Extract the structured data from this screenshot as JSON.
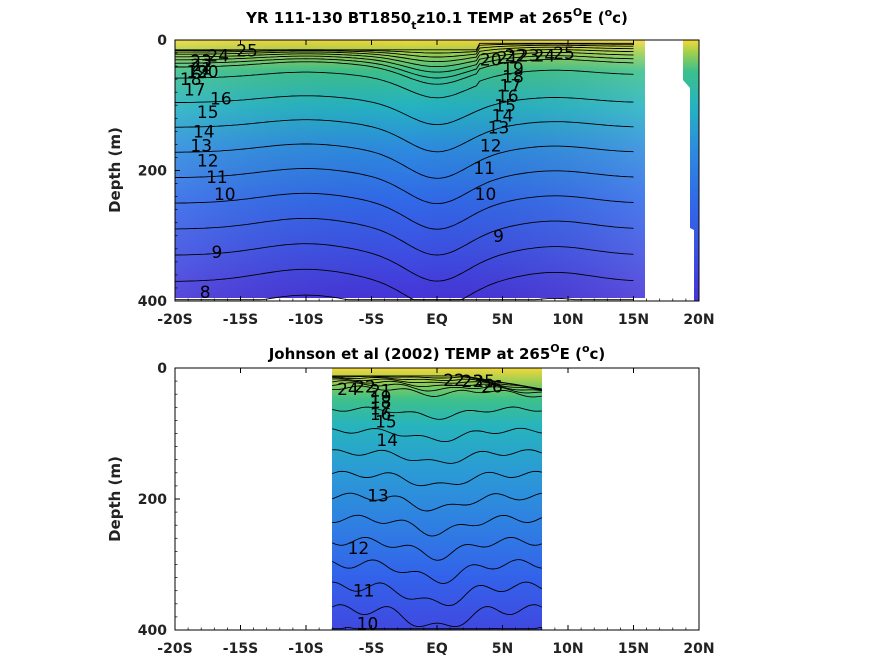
{
  "chart_data": [
    {
      "type": "contour",
      "title": "YR 111-130 BT1850",
      "title_sub": "t",
      "title_rest": "z10.1 TEMP at 265",
      "title_sup": "O",
      "title_end": "E (",
      "title_sup2": "o",
      "title_close": "c)",
      "ylabel": "Depth (m)",
      "ylim": [
        400,
        0
      ],
      "xlim": [
        -20,
        20
      ],
      "x_ticks": [
        -20,
        -15,
        -10,
        -5,
        0,
        5,
        10,
        15,
        20
      ],
      "x_tick_labels": [
        "-20S",
        "-15S",
        "-10S",
        "-5S",
        "EQ",
        "5N",
        "10N",
        "15N",
        "20N"
      ],
      "y_ticks": [
        0,
        200,
        400
      ],
      "y_tick_labels": [
        "0",
        "200",
        "400"
      ],
      "colors": {
        "warm": "#f4d83a",
        "mid": "#2bb7b0",
        "cool": "#2f68e6",
        "deep": "#4634d8"
      },
      "contour_levels": [
        8,
        9,
        10,
        11,
        12,
        13,
        14,
        15,
        16,
        17,
        18,
        19,
        20,
        21,
        22,
        23,
        24,
        25
      ],
      "contour_labels": [
        {
          "text": "25",
          "lon": -14.5,
          "depth": 16
        },
        {
          "text": "24",
          "lon": -16.7,
          "depth": 24
        },
        {
          "text": "23",
          "lon": -18,
          "depth": 32
        },
        {
          "text": "22",
          "lon": -18,
          "depth": 38
        },
        {
          "text": "21",
          "lon": -18,
          "depth": 44
        },
        {
          "text": "19",
          "lon": -18.3,
          "depth": 48
        },
        {
          "text": "20",
          "lon": -17.5,
          "depth": 48
        },
        {
          "text": "18",
          "lon": -18.8,
          "depth": 60
        },
        {
          "text": "17",
          "lon": -18.5,
          "depth": 76
        },
        {
          "text": "16",
          "lon": -16.5,
          "depth": 90
        },
        {
          "text": "15",
          "lon": -17.5,
          "depth": 110
        },
        {
          "text": "14",
          "lon": -17.8,
          "depth": 140
        },
        {
          "text": "13",
          "lon": -18,
          "depth": 162
        },
        {
          "text": "12",
          "lon": -17.5,
          "depth": 185
        },
        {
          "text": "11",
          "lon": -16.8,
          "depth": 210
        },
        {
          "text": "10",
          "lon": -16.2,
          "depth": 236
        },
        {
          "text": "9",
          "lon": -16.8,
          "depth": 325
        },
        {
          "text": "8",
          "lon": -17.7,
          "depth": 386
        },
        {
          "text": "25",
          "lon": 9.7,
          "depth": 20
        },
        {
          "text": "24",
          "lon": 8.2,
          "depth": 24
        },
        {
          "text": "23",
          "lon": 7,
          "depth": 24
        },
        {
          "text": "22",
          "lon": 6,
          "depth": 24
        },
        {
          "text": "20",
          "lon": 4.1,
          "depth": 30
        },
        {
          "text": "21",
          "lon": 5.4,
          "depth": 27
        },
        {
          "text": "19",
          "lon": 5.8,
          "depth": 44
        },
        {
          "text": "18",
          "lon": 5.8,
          "depth": 56
        },
        {
          "text": "17",
          "lon": 5.6,
          "depth": 70
        },
        {
          "text": "16",
          "lon": 5.4,
          "depth": 86
        },
        {
          "text": "15",
          "lon": 5.2,
          "depth": 100
        },
        {
          "text": "14",
          "lon": 5,
          "depth": 116
        },
        {
          "text": "13",
          "lon": 4.7,
          "depth": 134
        },
        {
          "text": "12",
          "lon": 4.1,
          "depth": 162
        },
        {
          "text": "11",
          "lon": 3.6,
          "depth": 196
        },
        {
          "text": "10",
          "lon": 3.7,
          "depth": 236
        },
        {
          "text": "9",
          "lon": 4.7,
          "depth": 300
        }
      ]
    },
    {
      "type": "contour",
      "title": "Johnson et al (2002) TEMP at 265",
      "title_sup": "O",
      "title_end": "E (",
      "title_sup2": "o",
      "title_close": "c)",
      "ylabel": "Depth (m)",
      "ylim": [
        400,
        0
      ],
      "xlim": [
        -20,
        20
      ],
      "data_lon_range": [
        -8,
        8
      ],
      "x_ticks": [
        -20,
        -15,
        -10,
        -5,
        0,
        5,
        10,
        15,
        20
      ],
      "x_tick_labels": [
        "-20S",
        "-15S",
        "-10S",
        "-5S",
        "EQ",
        "5N",
        "10N",
        "15N",
        "20N"
      ],
      "y_ticks": [
        0,
        200,
        400
      ],
      "y_tick_labels": [
        "0",
        "200",
        "400"
      ],
      "contour_levels": [
        10,
        11,
        12,
        13,
        14,
        15,
        16,
        17,
        18,
        19,
        20,
        21,
        22,
        23,
        24,
        25,
        26,
        27
      ],
      "contour_labels": [
        {
          "text": "24",
          "lon": -6.8,
          "depth": 32
        },
        {
          "text": "22",
          "lon": -5.5,
          "depth": 28
        },
        {
          "text": "21",
          "lon": -4.3,
          "depth": 34
        },
        {
          "text": "19",
          "lon": -4.3,
          "depth": 44
        },
        {
          "text": "18",
          "lon": -4.3,
          "depth": 52
        },
        {
          "text": "17",
          "lon": -4.3,
          "depth": 62
        },
        {
          "text": "16",
          "lon": -4.3,
          "depth": 70
        },
        {
          "text": "15",
          "lon": -3.9,
          "depth": 82
        },
        {
          "text": "14",
          "lon": -3.8,
          "depth": 110
        },
        {
          "text": "13",
          "lon": -4.5,
          "depth": 195
        },
        {
          "text": "12",
          "lon": -6,
          "depth": 275
        },
        {
          "text": "11",
          "lon": -5.6,
          "depth": 340
        },
        {
          "text": "10",
          "lon": -5.3,
          "depth": 390
        },
        {
          "text": "22",
          "lon": 1.3,
          "depth": 18
        },
        {
          "text": "23",
          "lon": 2.7,
          "depth": 20
        },
        {
          "text": "25",
          "lon": 3.6,
          "depth": 20
        },
        {
          "text": "26",
          "lon": 4.2,
          "depth": 28
        }
      ]
    }
  ]
}
